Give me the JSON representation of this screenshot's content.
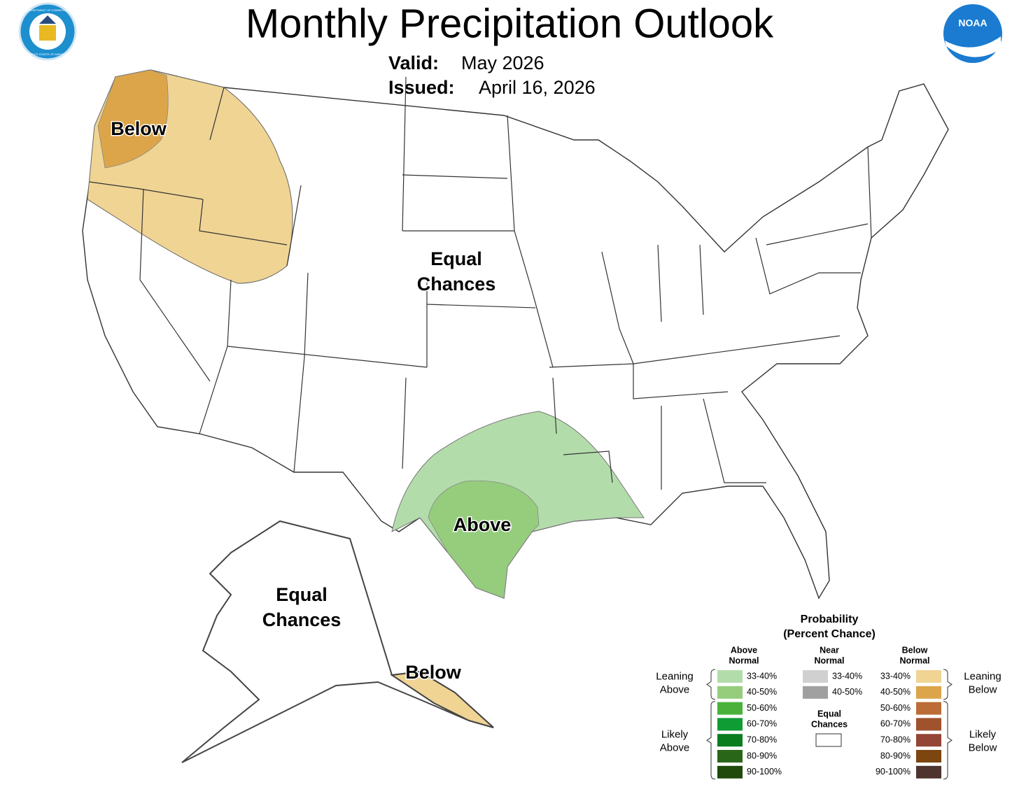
{
  "header": {
    "title": "Monthly Precipitation Outlook",
    "valid_label": "Valid:",
    "valid": "May 2026",
    "issued_label": "Issued:",
    "issued": "April 16, 2026",
    "left_logo": [
      "DEPARTMENT OF COMMERCE",
      "UNITED STATES OF AMERICA"
    ],
    "right_logo": "NOAA"
  },
  "map_labels": [
    "Below",
    "Equal Chances",
    "Above",
    "Equal Chances",
    "Below"
  ],
  "legend": {
    "title": "Probability",
    "subtitle": "(Percent Chance)",
    "columns": [
      {
        "heading": "Above Normal",
        "items": [
          {
            "label": "33-40%",
            "color": "#b3dcab"
          },
          {
            "label": "40-50%",
            "color": "#95cd7d"
          },
          {
            "label": "50-60%",
            "color": "#4ab23a"
          },
          {
            "label": "60-70%",
            "color": "#0f9c34"
          },
          {
            "label": "70-80%",
            "color": "#0a7d1f"
          },
          {
            "label": "80-90%",
            "color": "#2a6618"
          },
          {
            "label": "90-100%",
            "color": "#1f4a0b"
          }
        ]
      },
      {
        "heading": "Near Normal",
        "items": [
          {
            "label": "33-40%",
            "color": "#d0d0d0"
          },
          {
            "label": "40-50%",
            "color": "#a0a0a0"
          }
        ]
      },
      {
        "heading": "Below Normal",
        "items": [
          {
            "label": "33-40%",
            "color": "#f0d494"
          },
          {
            "label": "40-50%",
            "color": "#dca54a"
          },
          {
            "label": "50-60%",
            "color": "#bb6c37"
          },
          {
            "label": "60-70%",
            "color": "#a0522d"
          },
          {
            "label": "70-80%",
            "color": "#944535"
          },
          {
            "label": "80-90%",
            "color": "#7d4510"
          },
          {
            "label": "90-100%",
            "color": "#4e342e"
          }
        ]
      }
    ],
    "equal_chances": "Equal Chances",
    "groups": [
      "Leaning Above",
      "Likely Above",
      "Leaning Below",
      "Likely Below"
    ]
  }
}
